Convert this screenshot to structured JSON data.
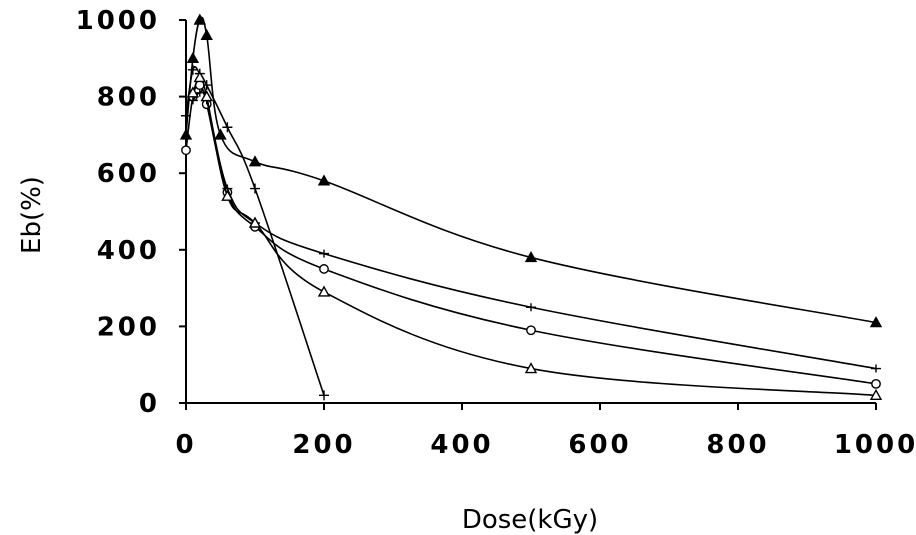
{
  "chart_data": {
    "type": "line",
    "xlabel": "Dose(kGy)",
    "ylabel": "Eb(%)",
    "xlim": [
      0,
      1000
    ],
    "ylim": [
      0,
      1000
    ],
    "xticks": [
      "0",
      "200",
      "400",
      "600",
      "800",
      "1000"
    ],
    "yticks": [
      "0",
      "200",
      "400",
      "600",
      "800",
      "1000"
    ],
    "grid": false,
    "legend": "none",
    "series": [
      {
        "marker": "filled-triangle",
        "x": [
          0,
          10,
          20,
          30,
          50,
          100,
          200,
          500,
          1000
        ],
        "y": [
          700,
          900,
          1000,
          960,
          700,
          630,
          580,
          380,
          210
        ]
      },
      {
        "marker": "plus",
        "x": [
          0,
          10,
          20,
          30,
          60,
          100,
          200
        ],
        "y": [
          750,
          870,
          860,
          830,
          720,
          560,
          20
        ]
      },
      {
        "marker": "open-circle",
        "x": [
          0,
          10,
          20,
          30,
          60,
          100,
          200,
          500,
          1000
        ],
        "y": [
          660,
          800,
          830,
          780,
          550,
          460,
          350,
          190,
          50
        ]
      },
      {
        "marker": "cross",
        "x": [
          10,
          20,
          30,
          60,
          100,
          200,
          500,
          1000
        ],
        "y": [
          790,
          810,
          790,
          560,
          470,
          390,
          250,
          90
        ]
      },
      {
        "marker": "open-triangle",
        "x": [
          10,
          20,
          30,
          60,
          100,
          200,
          500,
          1000
        ],
        "y": [
          810,
          850,
          800,
          540,
          470,
          290,
          90,
          20
        ]
      }
    ]
  }
}
